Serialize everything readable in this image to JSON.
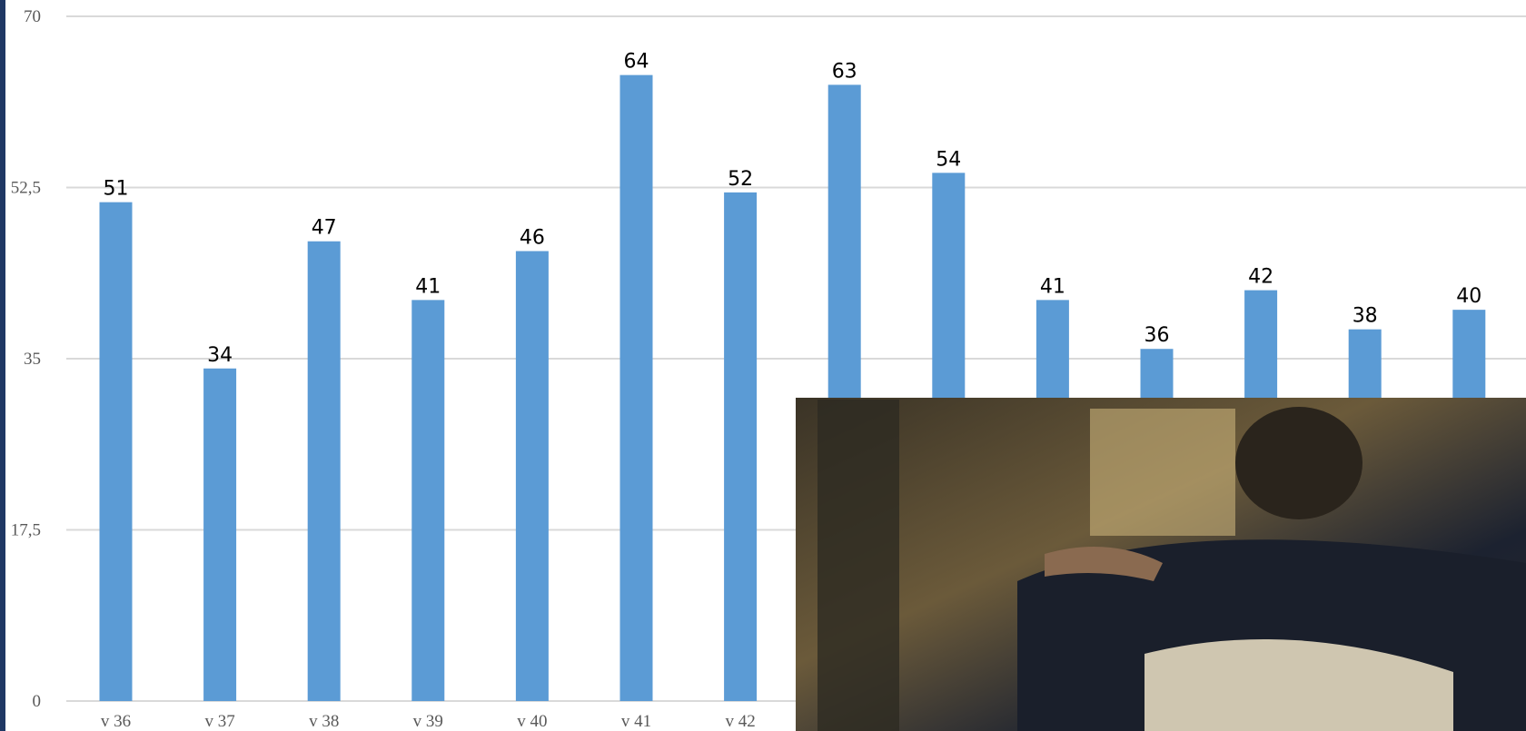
{
  "chart_data": {
    "type": "bar",
    "color": "#5b9bd5",
    "grid": true,
    "categories": [
      "v 36",
      "v 37",
      "v 38",
      "v 39",
      "v 40",
      "v 41",
      "v 42",
      null,
      null,
      null,
      null,
      null,
      null,
      null
    ],
    "values": [
      51,
      34,
      47,
      41,
      46,
      64,
      52,
      63,
      54,
      41,
      36,
      42,
      38,
      40
    ],
    "ylim": [
      0,
      70
    ],
    "yticks": [
      0,
      {
        "value": 17.5,
        "label": "17,5"
      },
      35,
      {
        "value": 52.5,
        "label": "52,5"
      },
      70
    ]
  }
}
